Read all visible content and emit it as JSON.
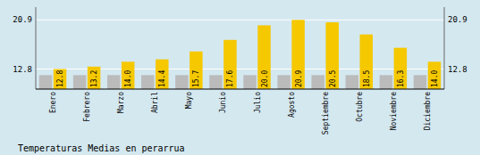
{
  "chart_data": {
    "type": "bar",
    "title": "Temperaturas Medias en perarrua",
    "categories": [
      "Enero",
      "Febrero",
      "Marzo",
      "Abril",
      "Mayo",
      "Junio",
      "Julio",
      "Agosto",
      "Septiembre",
      "Octubre",
      "Noviembre",
      "Diciembre"
    ],
    "series": [
      {
        "color": "#BBBBBB",
        "values": [
          11.8,
          11.8,
          11.8,
          11.8,
          11.8,
          11.8,
          11.8,
          11.8,
          11.8,
          11.8,
          11.8,
          11.8
        ]
      },
      {
        "color": "#F5C800",
        "values": [
          12.8,
          13.2,
          14.0,
          14.4,
          15.7,
          17.6,
          20.0,
          20.9,
          20.5,
          18.5,
          16.3,
          14.0
        ],
        "value_labels": [
          "12.8",
          "13.2",
          "14.0",
          "14.4",
          "15.7",
          "17.6",
          "20.0",
          "20.9",
          "20.5",
          "18.5",
          "16.3",
          "14.0"
        ],
        "data_labels": true
      }
    ],
    "ylim": [
      9.5,
      23.0
    ],
    "yticks": [
      12.8,
      20.9
    ],
    "y2lim": [
      9.5,
      23.0
    ],
    "y2ticks": [
      12.8,
      20.9
    ],
    "grid": true
  }
}
